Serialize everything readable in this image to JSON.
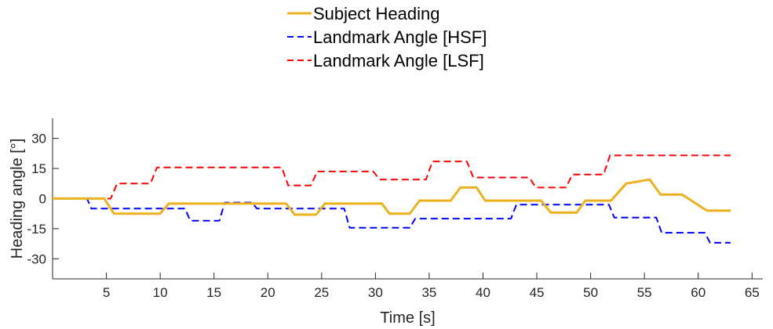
{
  "chart_data": {
    "type": "line",
    "title": "",
    "xlabel": "Time [s]",
    "ylabel": "Heading angle [°]",
    "xlim": [
      0,
      66
    ],
    "ylim": [
      -40,
      40
    ],
    "xticks": [
      5,
      10,
      15,
      20,
      25,
      30,
      35,
      40,
      45,
      50,
      55,
      60,
      65
    ],
    "yticks": [
      30,
      15,
      0,
      -15,
      -30
    ],
    "grid": false,
    "legend_position": "top-center",
    "series": [
      {
        "name": "Subject Heading",
        "color": "#EDB120",
        "line_style": "solid",
        "x": [
          0,
          4.8,
          5.7,
          10,
          10.8,
          21.7,
          22.5,
          24.5,
          25.3,
          30.6,
          31.3,
          33.2,
          34.1,
          37,
          37.9,
          39.4,
          40.2,
          45.4,
          46.3,
          48.7,
          49.5,
          51.9,
          53.3,
          55.5,
          56.5,
          58.5,
          60.8,
          63
        ],
        "y": [
          0,
          0,
          -7.5,
          -7.5,
          -2.5,
          -2.5,
          -8,
          -8,
          -2.5,
          -2.5,
          -7.5,
          -7.5,
          -1,
          -1,
          5.5,
          5.5,
          -1,
          -1,
          -7,
          -7,
          -1,
          -1,
          7.5,
          9.5,
          2,
          2,
          -6,
          -6
        ]
      },
      {
        "name": "Landmark Angle [HSF]",
        "color": "#0000FF",
        "line_style": "dashed",
        "x": [
          0,
          3.2,
          3.6,
          12.3,
          12.8,
          15.5,
          16.0,
          18.5,
          19.0,
          27.1,
          27.6,
          33.2,
          33.7,
          42.6,
          43.1,
          51.7,
          52.2,
          56.1,
          56.6,
          60.6,
          61.1,
          63
        ],
        "y": [
          0,
          0,
          -5,
          -5,
          -11,
          -11,
          -2,
          -2,
          -5,
          -5,
          -14.5,
          -14.5,
          -10,
          -10,
          -3,
          -3,
          -9.5,
          -9.5,
          -17,
          -17,
          -22,
          -22
        ]
      },
      {
        "name": "Landmark Angle [LSF]",
        "color": "#FF0000",
        "line_style": "dashed",
        "x": [
          0,
          5.4,
          6.0,
          9.1,
          9.7,
          21.3,
          21.9,
          24.0,
          24.6,
          29.8,
          30.4,
          34.7,
          35.3,
          38.5,
          39.1,
          44.3,
          44.9,
          47.7,
          48.3,
          51.2,
          51.8,
          63
        ],
        "y": [
          0,
          0,
          7.5,
          7.5,
          15.5,
          15.5,
          6.5,
          6.5,
          13.5,
          13.5,
          9.5,
          9.5,
          18.5,
          18.5,
          10.5,
          10.5,
          5.5,
          5.5,
          12,
          12,
          21.5,
          21.5
        ]
      }
    ]
  }
}
